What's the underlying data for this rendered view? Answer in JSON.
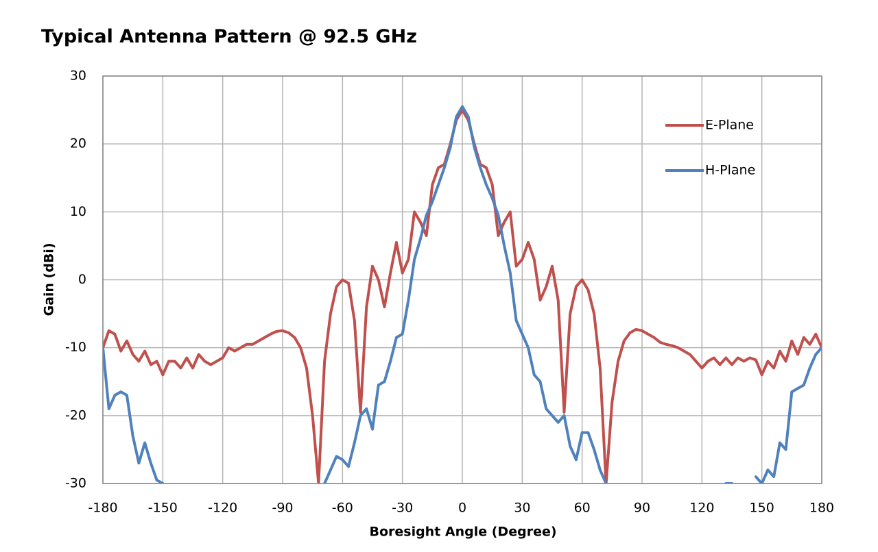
{
  "chart_data": {
    "type": "line",
    "title": "Typical Antenna Pattern @ 92.5 GHz",
    "x_label": "Boresight Angle (Degree)",
    "y_label": "Gain (dBi)",
    "xlim": [
      -180,
      180
    ],
    "ylim": [
      -30,
      30
    ],
    "xticks": [
      -180,
      -150,
      -120,
      -90,
      -60,
      -30,
      0,
      30,
      60,
      90,
      120,
      150,
      180
    ],
    "yticks": [
      -30,
      -20,
      -10,
      0,
      10,
      20,
      30
    ],
    "grid": true,
    "legend": "upper right",
    "x": [
      -180,
      -177,
      -174,
      -171,
      -168,
      -165,
      -162,
      -159,
      -156,
      -153,
      -150,
      -147,
      -144,
      -141,
      -138,
      -135,
      -132,
      -129,
      -126,
      -123,
      -120,
      -117,
      -114,
      -111,
      -108,
      -105,
      -102,
      -99,
      -96,
      -93,
      -90,
      -87,
      -84,
      -81,
      -78,
      -75,
      -72,
      -69,
      -66,
      -63,
      -60,
      -57,
      -54,
      -51,
      -48,
      -45,
      -42,
      -39,
      -36,
      -33,
      -30,
      -27,
      -24,
      -21,
      -18,
      -15,
      -12,
      -9,
      -6,
      -3,
      0,
      3,
      6,
      9,
      12,
      15,
      18,
      21,
      24,
      27,
      30,
      33,
      36,
      39,
      42,
      45,
      48,
      51,
      54,
      57,
      60,
      63,
      66,
      69,
      72,
      75,
      78,
      81,
      84,
      87,
      90,
      93,
      96,
      99,
      102,
      105,
      108,
      111,
      114,
      117,
      120,
      123,
      126,
      129,
      132,
      135,
      138,
      141,
      144,
      147,
      150,
      153,
      156,
      159,
      162,
      165,
      168,
      171,
      174,
      177,
      180
    ],
    "series": [
      {
        "name": "E-Plane",
        "color": "#c0504d",
        "values": [
          -10,
          -7.5,
          -8,
          -10.5,
          -9,
          -11,
          -12,
          -10.5,
          -12.5,
          -12,
          -14,
          -12,
          -12,
          -13,
          -11.5,
          -13,
          -11,
          -12,
          -12.5,
          -12,
          -11.5,
          -10,
          -10.5,
          -10,
          -9.5,
          -9.5,
          -9,
          -8.5,
          -8,
          -7.6,
          -7.5,
          -7.8,
          -8.5,
          -10,
          -13,
          -20,
          -30,
          -12,
          -5,
          -1,
          0,
          -0.5,
          -6,
          -19.5,
          -4,
          2,
          0,
          -4,
          1,
          5.5,
          1,
          3,
          10,
          8.5,
          6.5,
          14,
          16.5,
          17,
          20,
          23.5,
          25,
          23.5,
          20,
          17,
          16.5,
          14,
          6.5,
          8.5,
          10,
          2,
          3,
          5.5,
          3,
          -3,
          -1,
          2,
          -3,
          -19.5,
          -5,
          -1,
          0,
          -1.5,
          -5,
          -13,
          -30,
          -18,
          -12,
          -9,
          -7.8,
          -7.3,
          -7.5,
          -8,
          -8.5,
          -9.2,
          -9.5,
          -9.7,
          -10,
          -10.5,
          -11,
          -12,
          -13,
          -12,
          -11.5,
          -12.5,
          -11.5,
          -12.5,
          -11.5,
          -12,
          -11.5,
          -11.8,
          -14,
          -12,
          -13,
          -10.5,
          -12,
          -9,
          -11,
          -8.5,
          -9.5,
          -8,
          -10
        ]
      },
      {
        "name": "H-Plane",
        "color": "#4f81bd",
        "values": [
          -10,
          -19,
          -17,
          -16.5,
          -17,
          -23,
          -27,
          -24,
          -27,
          -29.5,
          -30,
          null,
          null,
          null,
          null,
          null,
          null,
          null,
          null,
          null,
          null,
          null,
          null,
          null,
          null,
          null,
          null,
          null,
          null,
          null,
          null,
          null,
          null,
          null,
          null,
          null,
          null,
          -30,
          -28,
          -26,
          -26.5,
          -27.5,
          -24,
          -20,
          -19,
          -22,
          -15.5,
          -15,
          -12,
          -8.5,
          -8,
          -3,
          3,
          6,
          9.5,
          11.5,
          14,
          16.5,
          19.5,
          24,
          25.5,
          24,
          19.5,
          16.5,
          14,
          12,
          9.5,
          5,
          1,
          -6,
          -8,
          -10,
          -14,
          -15,
          -19,
          -20,
          -21,
          -20,
          -24.5,
          -26.5,
          -22.5,
          -22.5,
          -25,
          -28,
          -30,
          null,
          null,
          null,
          null,
          null,
          null,
          null,
          null,
          null,
          null,
          null,
          null,
          null,
          null,
          null,
          null,
          null,
          null,
          null,
          -30,
          -30,
          null,
          null,
          null,
          -29,
          -30,
          -28,
          -29,
          -24,
          -25,
          -16.5,
          -16,
          -15.5,
          -13,
          -11,
          -10
        ]
      }
    ]
  }
}
